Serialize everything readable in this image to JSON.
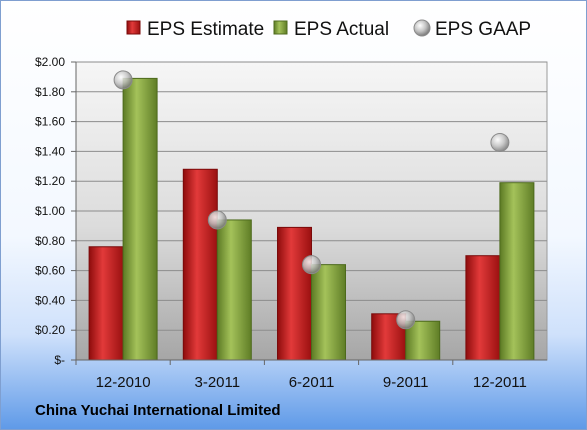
{
  "chart_data": {
    "type": "bar",
    "categories": [
      "12-2010",
      "3-2011",
      "6-2011",
      "9-2011",
      "12-2011"
    ],
    "series": [
      {
        "name": "EPS Estimate",
        "kind": "bar",
        "color": "#c81e1e",
        "values": [
          0.76,
          1.28,
          0.89,
          0.31,
          0.7
        ]
      },
      {
        "name": "EPS Actual",
        "kind": "bar",
        "color": "#86a83c",
        "values": [
          1.89,
          0.94,
          0.64,
          0.26,
          1.19
        ]
      },
      {
        "name": "EPS GAAP",
        "kind": "marker",
        "color": "#b0b0b0",
        "values": [
          1.88,
          0.94,
          0.64,
          0.27,
          1.46
        ]
      }
    ],
    "yticks": [
      {
        "value": 2.0,
        "label": "$2.00"
      },
      {
        "value": 1.8,
        "label": "$1.80"
      },
      {
        "value": 1.6,
        "label": "$1.60"
      },
      {
        "value": 1.4,
        "label": "$1.40"
      },
      {
        "value": 1.2,
        "label": "$1.20"
      },
      {
        "value": 1.0,
        "label": "$1.00"
      },
      {
        "value": 0.8,
        "label": "$0.80"
      },
      {
        "value": 0.6,
        "label": "$0.60"
      },
      {
        "value": 0.4,
        "label": "$0.40"
      },
      {
        "value": 0.2,
        "label": "$0.20"
      },
      {
        "value": 0.0,
        "label": "$-"
      }
    ],
    "ylim": [
      0,
      2.0
    ],
    "grid": true,
    "legend_position": "top"
  },
  "footer": {
    "company": "China Yuchai International Limited"
  }
}
